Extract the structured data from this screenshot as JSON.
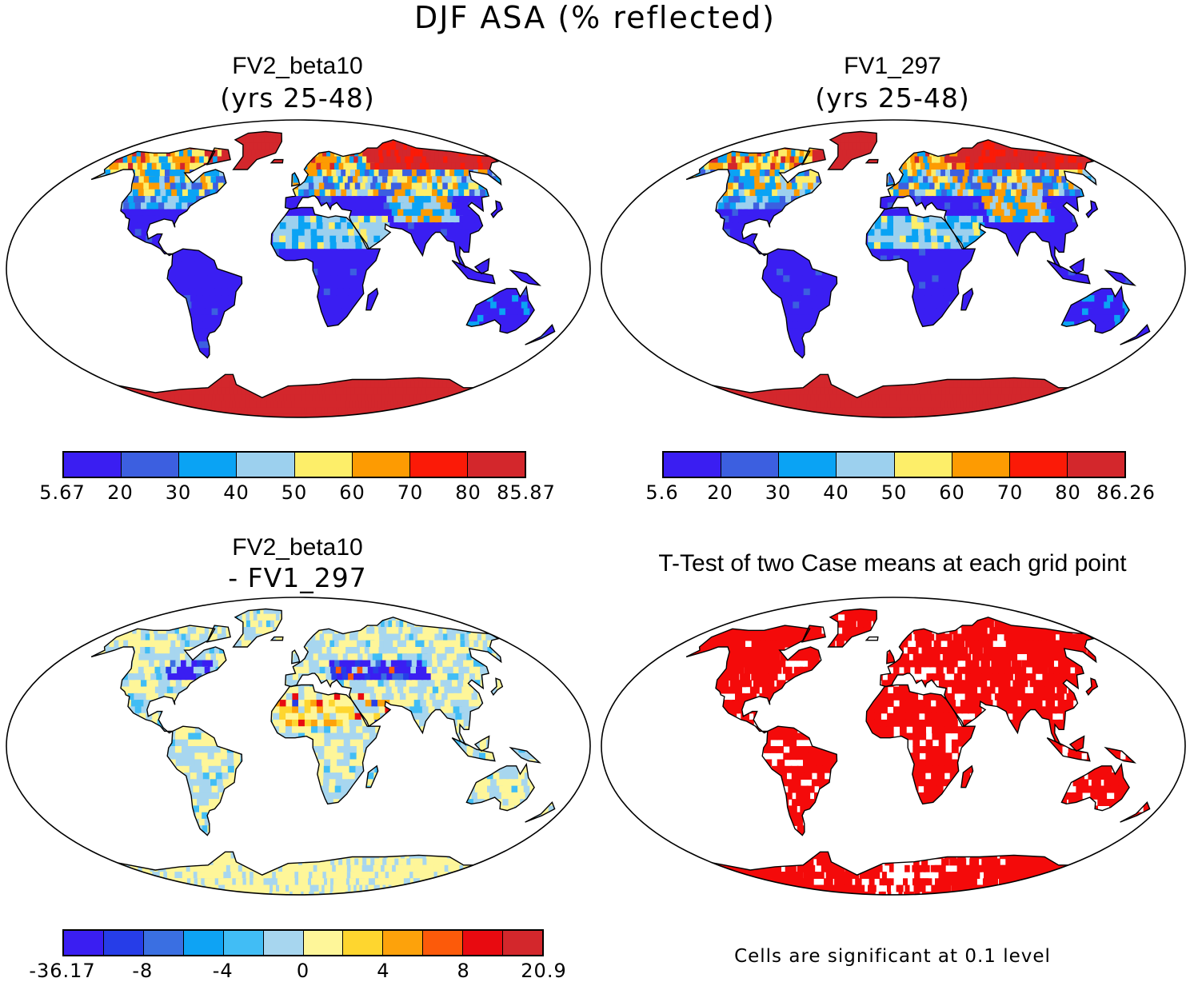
{
  "figure": {
    "title": "DJF ASA (% reflected)"
  },
  "panels": [
    {
      "id": "top-left",
      "title": "FV2_beta10",
      "subtitle": "(yrs 25-48)",
      "field": "absolute",
      "colorbar": {
        "colors": [
          "#3a1ef2",
          "#3c5fe0",
          "#0aa3f4",
          "#9cd0ee",
          "#fdee69",
          "#fd9b02",
          "#fb1a07",
          "#d3272c"
        ],
        "labels": [
          "5.67",
          "20",
          "30",
          "40",
          "50",
          "60",
          "70",
          "80",
          "85.87"
        ]
      }
    },
    {
      "id": "top-right",
      "title": "FV1_297",
      "subtitle": "(yrs 25-48)",
      "field": "absolute",
      "colorbar": {
        "colors": [
          "#3a1ef2",
          "#3c5fe0",
          "#0aa3f4",
          "#9cd0ee",
          "#fdee69",
          "#fd9b02",
          "#fb1a07",
          "#d3272c"
        ],
        "labels": [
          "5.6",
          "20",
          "30",
          "40",
          "50",
          "60",
          "70",
          "80",
          "86.26"
        ]
      }
    },
    {
      "id": "bottom-left",
      "title": "FV2_beta10",
      "subtitle": "- FV1_297",
      "field": "difference",
      "colorbar": {
        "colors": [
          "#3a1ef2",
          "#263de8",
          "#3a6fe2",
          "#0ea3f4",
          "#41bdf5",
          "#a7d6ef",
          "#fef699",
          "#fed62f",
          "#fda20b",
          "#fc5a0a",
          "#e80a10",
          "#d3272c"
        ],
        "labels": [
          "-36.17",
          "-8",
          "-4",
          "0",
          "4",
          "8",
          "20.9"
        ]
      }
    },
    {
      "id": "bottom-right",
      "title": "T-Test of two Case means at each grid point",
      "field": "significance",
      "note": "Cells are significant at 0.1 level",
      "sig_color": "#f40a0a"
    }
  ]
}
